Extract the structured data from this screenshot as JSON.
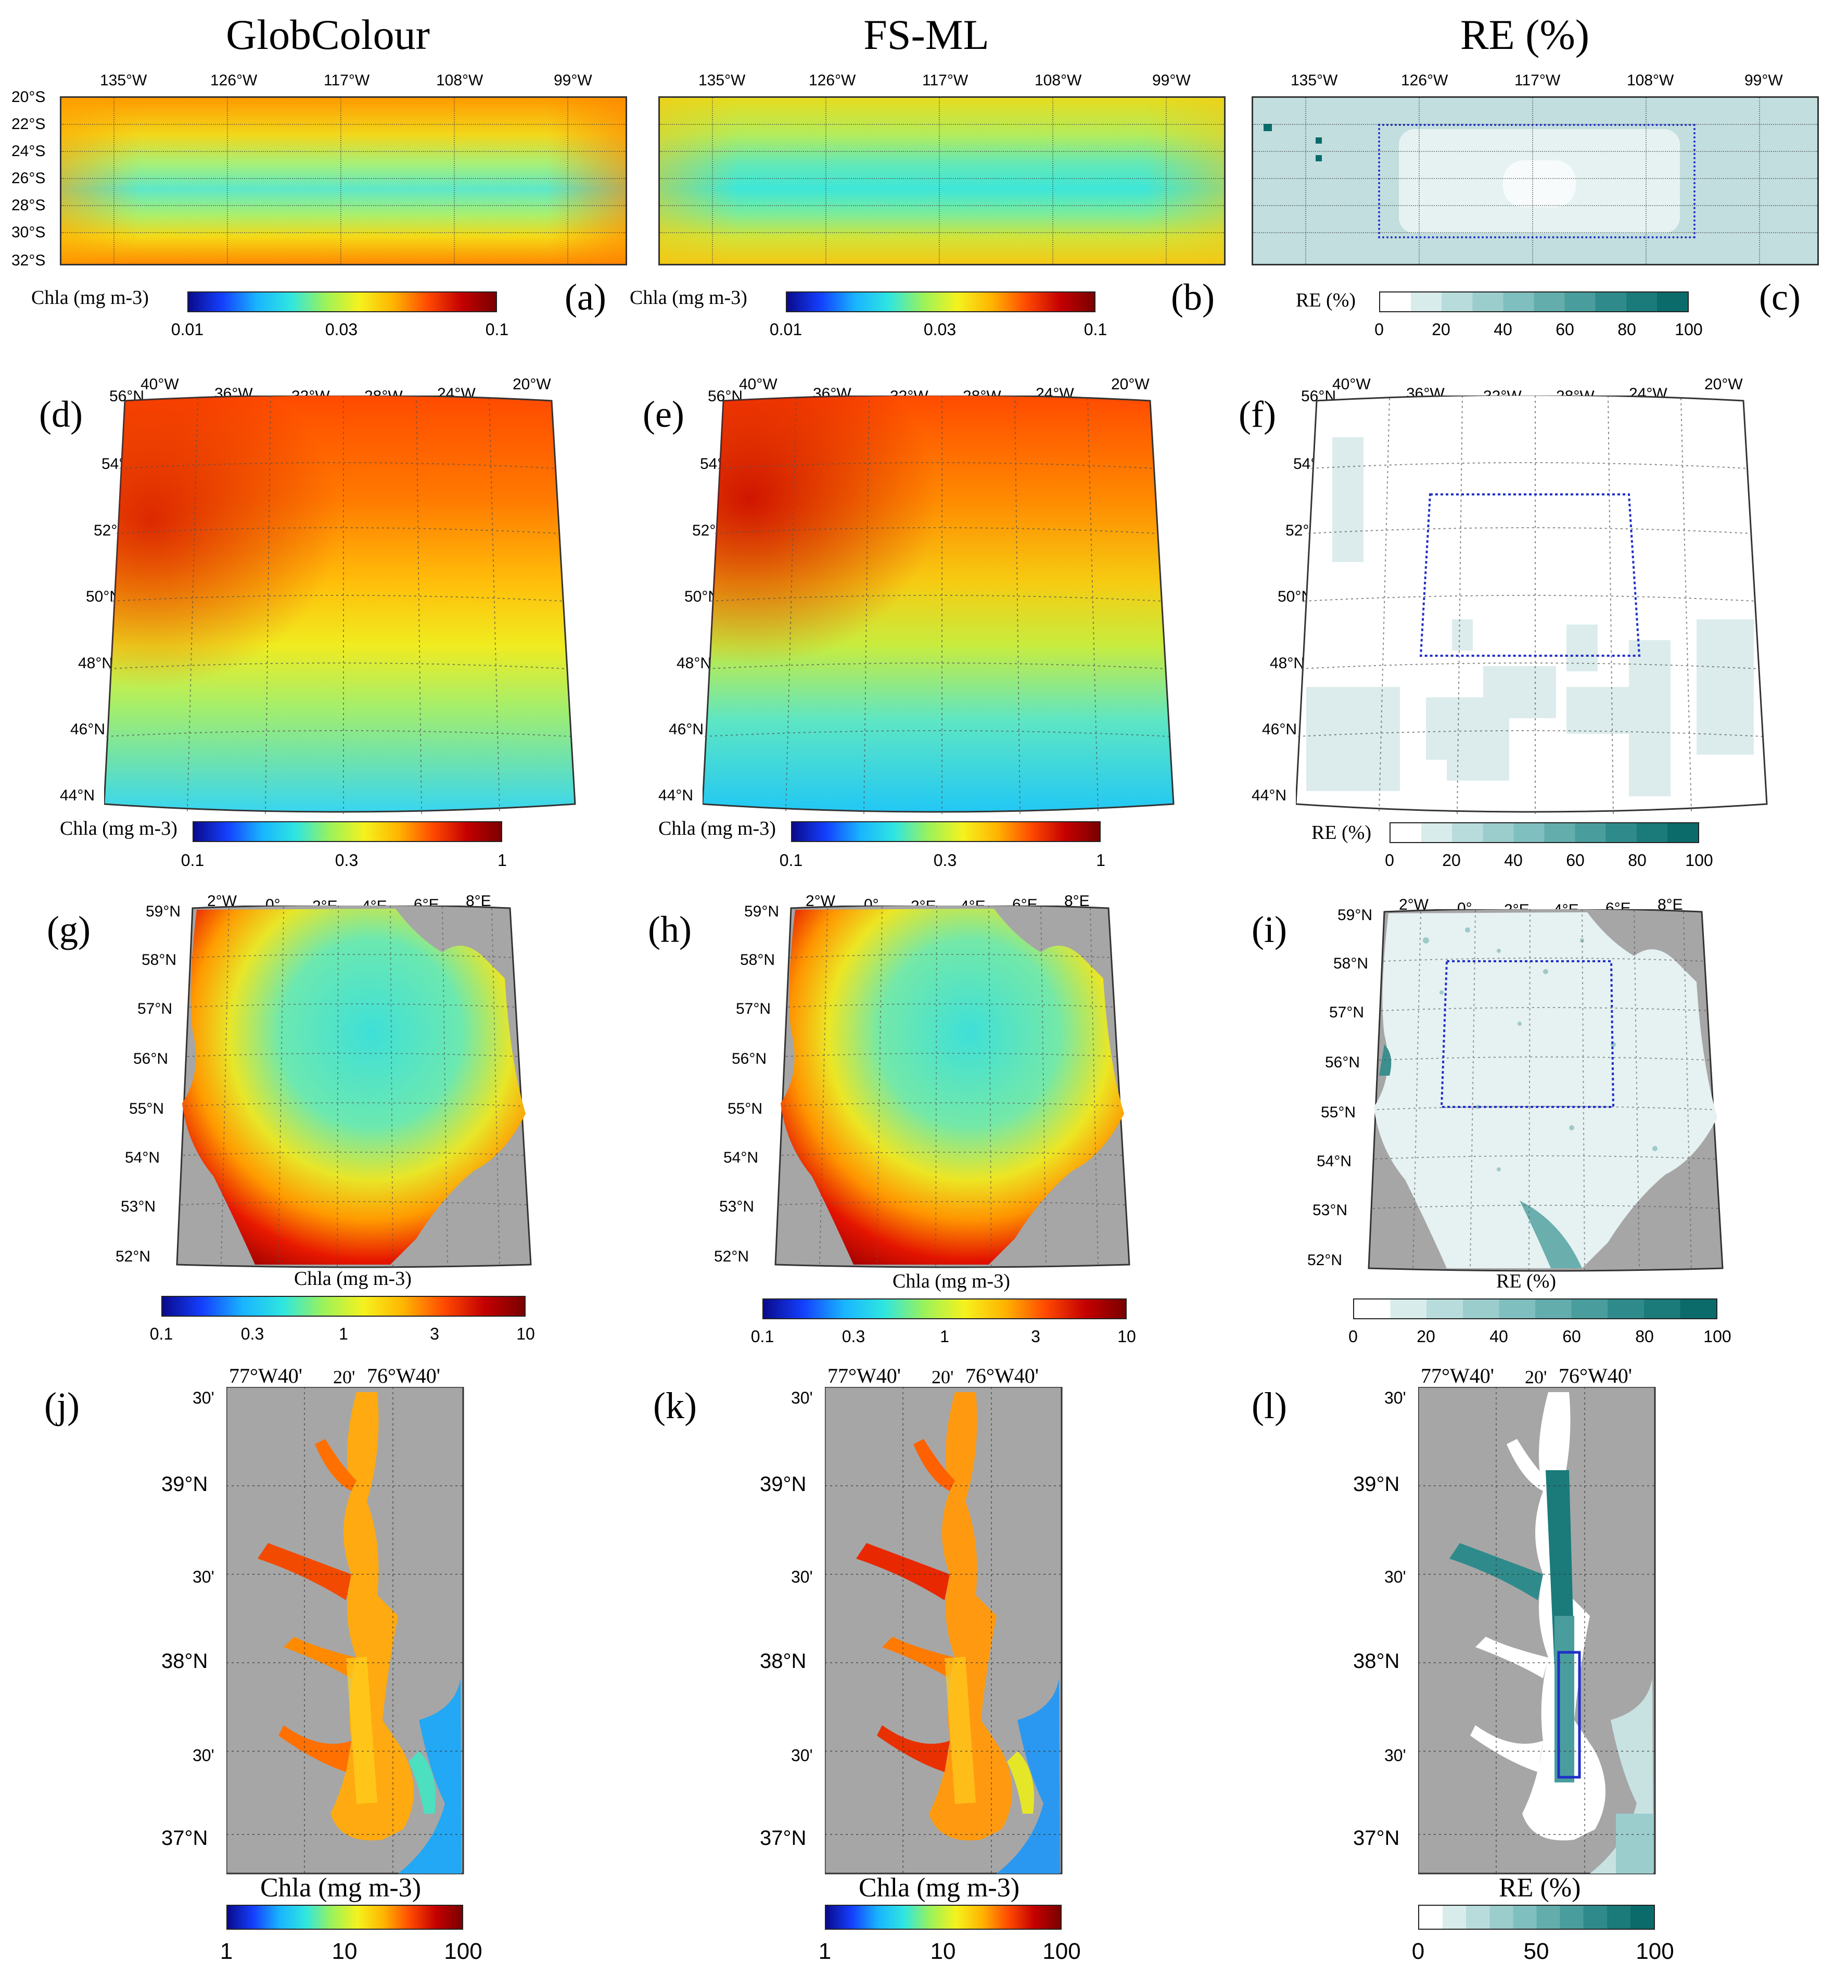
{
  "titles": {
    "col1": "GlobColour",
    "col2": "FS-ML",
    "col3": "RE (%)"
  },
  "letters": [
    "(a)",
    "(b)",
    "(c)",
    "(d)",
    "(e)",
    "(f)",
    "(g)",
    "(h)",
    "(i)",
    "(j)",
    "(k)",
    "(l)"
  ],
  "row1": {
    "lon_labels": [
      "135°W",
      "126°W",
      "117°W",
      "108°W",
      "99°W"
    ],
    "lat_labels": [
      "20°S",
      "22°S",
      "24°S",
      "26°S",
      "28°S",
      "30°S",
      "32°S"
    ],
    "chl_cb": {
      "label": "Chla (mg m-3)",
      "ticks": [
        "0.01",
        "0.03",
        "0.1"
      ]
    },
    "re_cb": {
      "label": "RE (%)",
      "ticks": [
        "0",
        "20",
        "40",
        "60",
        "80",
        "100"
      ]
    }
  },
  "row2": {
    "lon_labels": [
      "40°W",
      "36°W",
      "32°W",
      "28°W",
      "24°W",
      "20°W"
    ],
    "lat_labels": [
      "56°N",
      "54°N",
      "52°N",
      "50°N",
      "48°N",
      "46°N",
      "44°N"
    ],
    "chl_cb": {
      "label": "Chla (mg m-3)",
      "ticks": [
        "0.1",
        "0.3",
        "1"
      ]
    },
    "re_cb": {
      "label": "RE (%)",
      "ticks": [
        "0",
        "20",
        "40",
        "60",
        "80",
        "100"
      ]
    }
  },
  "row3": {
    "lon_labels": [
      "2°W",
      "0°",
      "2°E",
      "4°E",
      "6°E",
      "8°E"
    ],
    "lat_labels": [
      "59°N",
      "58°N",
      "57°N",
      "56°N",
      "55°N",
      "54°N",
      "53°N",
      "52°N"
    ],
    "chl_cb": {
      "label": "Chla (mg m-3)",
      "ticks": [
        "0.1",
        "0.3",
        "1",
        "3",
        "10"
      ]
    },
    "re_cb": {
      "label": "RE (%)",
      "ticks": [
        "0",
        "20",
        "40",
        "60",
        "80",
        "100"
      ]
    }
  },
  "row4": {
    "top_labels": [
      "77°W40'",
      "20'",
      "76°W40'"
    ],
    "lat_labels": [
      "30'",
      "39°N",
      "30'",
      "38°N",
      "30'",
      "37°N"
    ],
    "chl_cb": {
      "label": "Chla (mg m-3)",
      "ticks": [
        "1",
        "10",
        "100"
      ]
    },
    "re_cb": {
      "label": "RE (%)",
      "ticks": [
        "0",
        "50",
        "100"
      ]
    }
  },
  "colors": {
    "land": "#a6a6a6",
    "box": "#1f2fc8",
    "re_dark": "#0b6b6b"
  }
}
